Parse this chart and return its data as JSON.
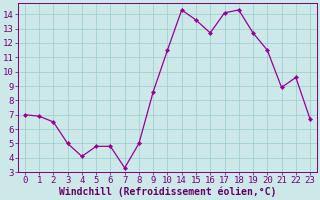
{
  "x_labels": [
    0,
    1,
    2,
    3,
    4,
    5,
    6,
    7,
    8,
    9,
    10,
    14,
    15,
    16,
    17,
    18,
    19,
    20,
    21,
    22,
    23
  ],
  "y": [
    7.0,
    6.9,
    6.5,
    5.0,
    4.1,
    4.8,
    4.8,
    3.3,
    5.0,
    8.6,
    11.5,
    14.3,
    13.6,
    12.7,
    14.1,
    14.3,
    12.7,
    11.5,
    8.9,
    9.6,
    6.7
  ],
  "line_color": "#990099",
  "marker": "D",
  "marker_size": 2.2,
  "bg_color": "#cce8e8",
  "grid_color": "#99cccc",
  "xlabel": "Windchill (Refroidissement éolien,°C)",
  "ylim": [
    3,
    14.8
  ],
  "yticks": [
    3,
    4,
    5,
    6,
    7,
    8,
    9,
    10,
    11,
    12,
    13,
    14
  ],
  "tick_color": "#770077",
  "axis_label_color": "#660066",
  "tick_fontsize": 6.5,
  "xlabel_fontsize": 7.0,
  "linewidth": 0.9
}
